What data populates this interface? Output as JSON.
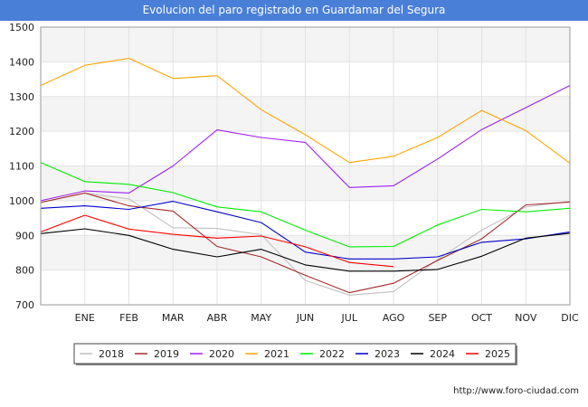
{
  "chart_data": {
    "type": "line",
    "title": "Evolucion del paro registrado en Guardamar del Segura",
    "categories": [
      "",
      "ENE",
      "FEB",
      "MAR",
      "ABR",
      "MAY",
      "JUN",
      "JUL",
      "AGO",
      "SEP",
      "OCT",
      "NOV",
      "DIC"
    ],
    "ylim": [
      700,
      1500
    ],
    "yticks": [
      700,
      800,
      900,
      1000,
      1100,
      1200,
      1300,
      1400,
      1500
    ],
    "xlabel": "",
    "ylabel": "",
    "grid": true,
    "legend_position": "bottom",
    "series": [
      {
        "name": "2018",
        "color": "#c0c0c0",
        "values": [
          null,
          1022,
          1005,
          922,
          920,
          902,
          770,
          728,
          738,
          830,
          915,
          982,
          998
        ]
      },
      {
        "name": "2019",
        "color": "#a52a2a",
        "values": [
          995,
          1022,
          985,
          970,
          868,
          838,
          785,
          735,
          762,
          828,
          890,
          988,
          996
        ]
      },
      {
        "name": "2020",
        "color": "#a020f0",
        "values": [
          1000,
          1028,
          1022,
          1100,
          1204,
          1182,
          1168,
          1038,
          1043,
          1120,
          1205,
          1268,
          1332
        ]
      },
      {
        "name": "2021",
        "color": "#ffa500",
        "values": [
          1332,
          1390,
          1410,
          1352,
          1360,
          1262,
          1190,
          1110,
          1128,
          1182,
          1260,
          1202,
          1108
        ]
      },
      {
        "name": "2022",
        "color": "#00ee00",
        "values": [
          1110,
          1055,
          1047,
          1023,
          982,
          968,
          915,
          867,
          868,
          930,
          975,
          968,
          978
        ]
      },
      {
        "name": "2023",
        "color": "#0000cc",
        "values": [
          978,
          985,
          975,
          998,
          968,
          937,
          852,
          832,
          832,
          838,
          880,
          890,
          910
        ]
      },
      {
        "name": "2024",
        "color": "#000000",
        "values": [
          905,
          919,
          900,
          860,
          838,
          860,
          815,
          797,
          797,
          802,
          840,
          892,
          906
        ]
      },
      {
        "name": "2025",
        "color": "#ff0000",
        "values": [
          910,
          958,
          918,
          903,
          892,
          898,
          867,
          822,
          810,
          null,
          null,
          null,
          null
        ]
      }
    ]
  },
  "footer": {
    "url": "http://www.foro-ciudad.com"
  }
}
